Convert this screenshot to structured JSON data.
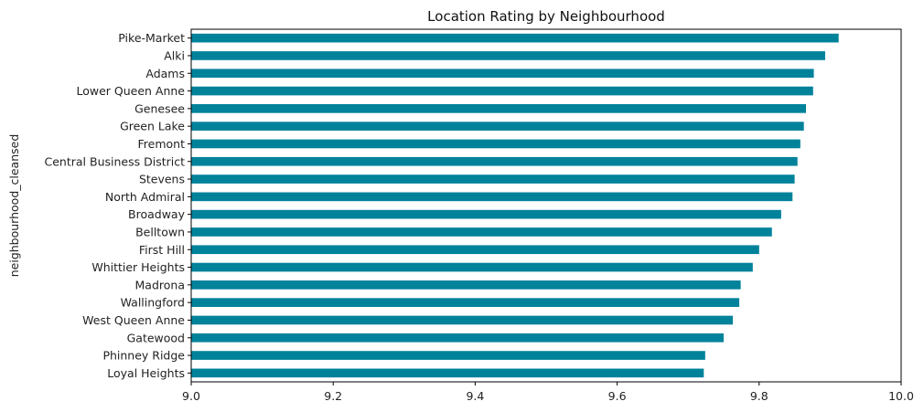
{
  "chart_data": {
    "type": "bar",
    "orientation": "horizontal",
    "title": "Location Rating by Neighbourhood",
    "xlabel": "",
    "ylabel": "neighbourhood_cleansed",
    "xlim": [
      9.0,
      10.0
    ],
    "xticks": [
      "9.0",
      "9.2",
      "9.4",
      "9.6",
      "9.8",
      "10.0"
    ],
    "grid": false,
    "bar_color": "#00829b",
    "categories": [
      "Pike-Market",
      "Alki",
      "Adams",
      "Lower Queen Anne",
      "Genesee",
      "Green Lake",
      "Fremont",
      "Central Business District",
      "Stevens",
      "North Admiral",
      "Broadway",
      "Belltown",
      "First Hill",
      "Whittier Heights",
      "Madrona",
      "Wallingford",
      "West Queen Anne",
      "Gatewood",
      "Phinney Ridge",
      "Loyal Heights"
    ],
    "values": [
      9.912,
      9.893,
      9.877,
      9.876,
      9.866,
      9.863,
      9.858,
      9.854,
      9.85,
      9.847,
      9.831,
      9.818,
      9.8,
      9.791,
      9.774,
      9.772,
      9.763,
      9.75,
      9.724,
      9.722
    ]
  }
}
